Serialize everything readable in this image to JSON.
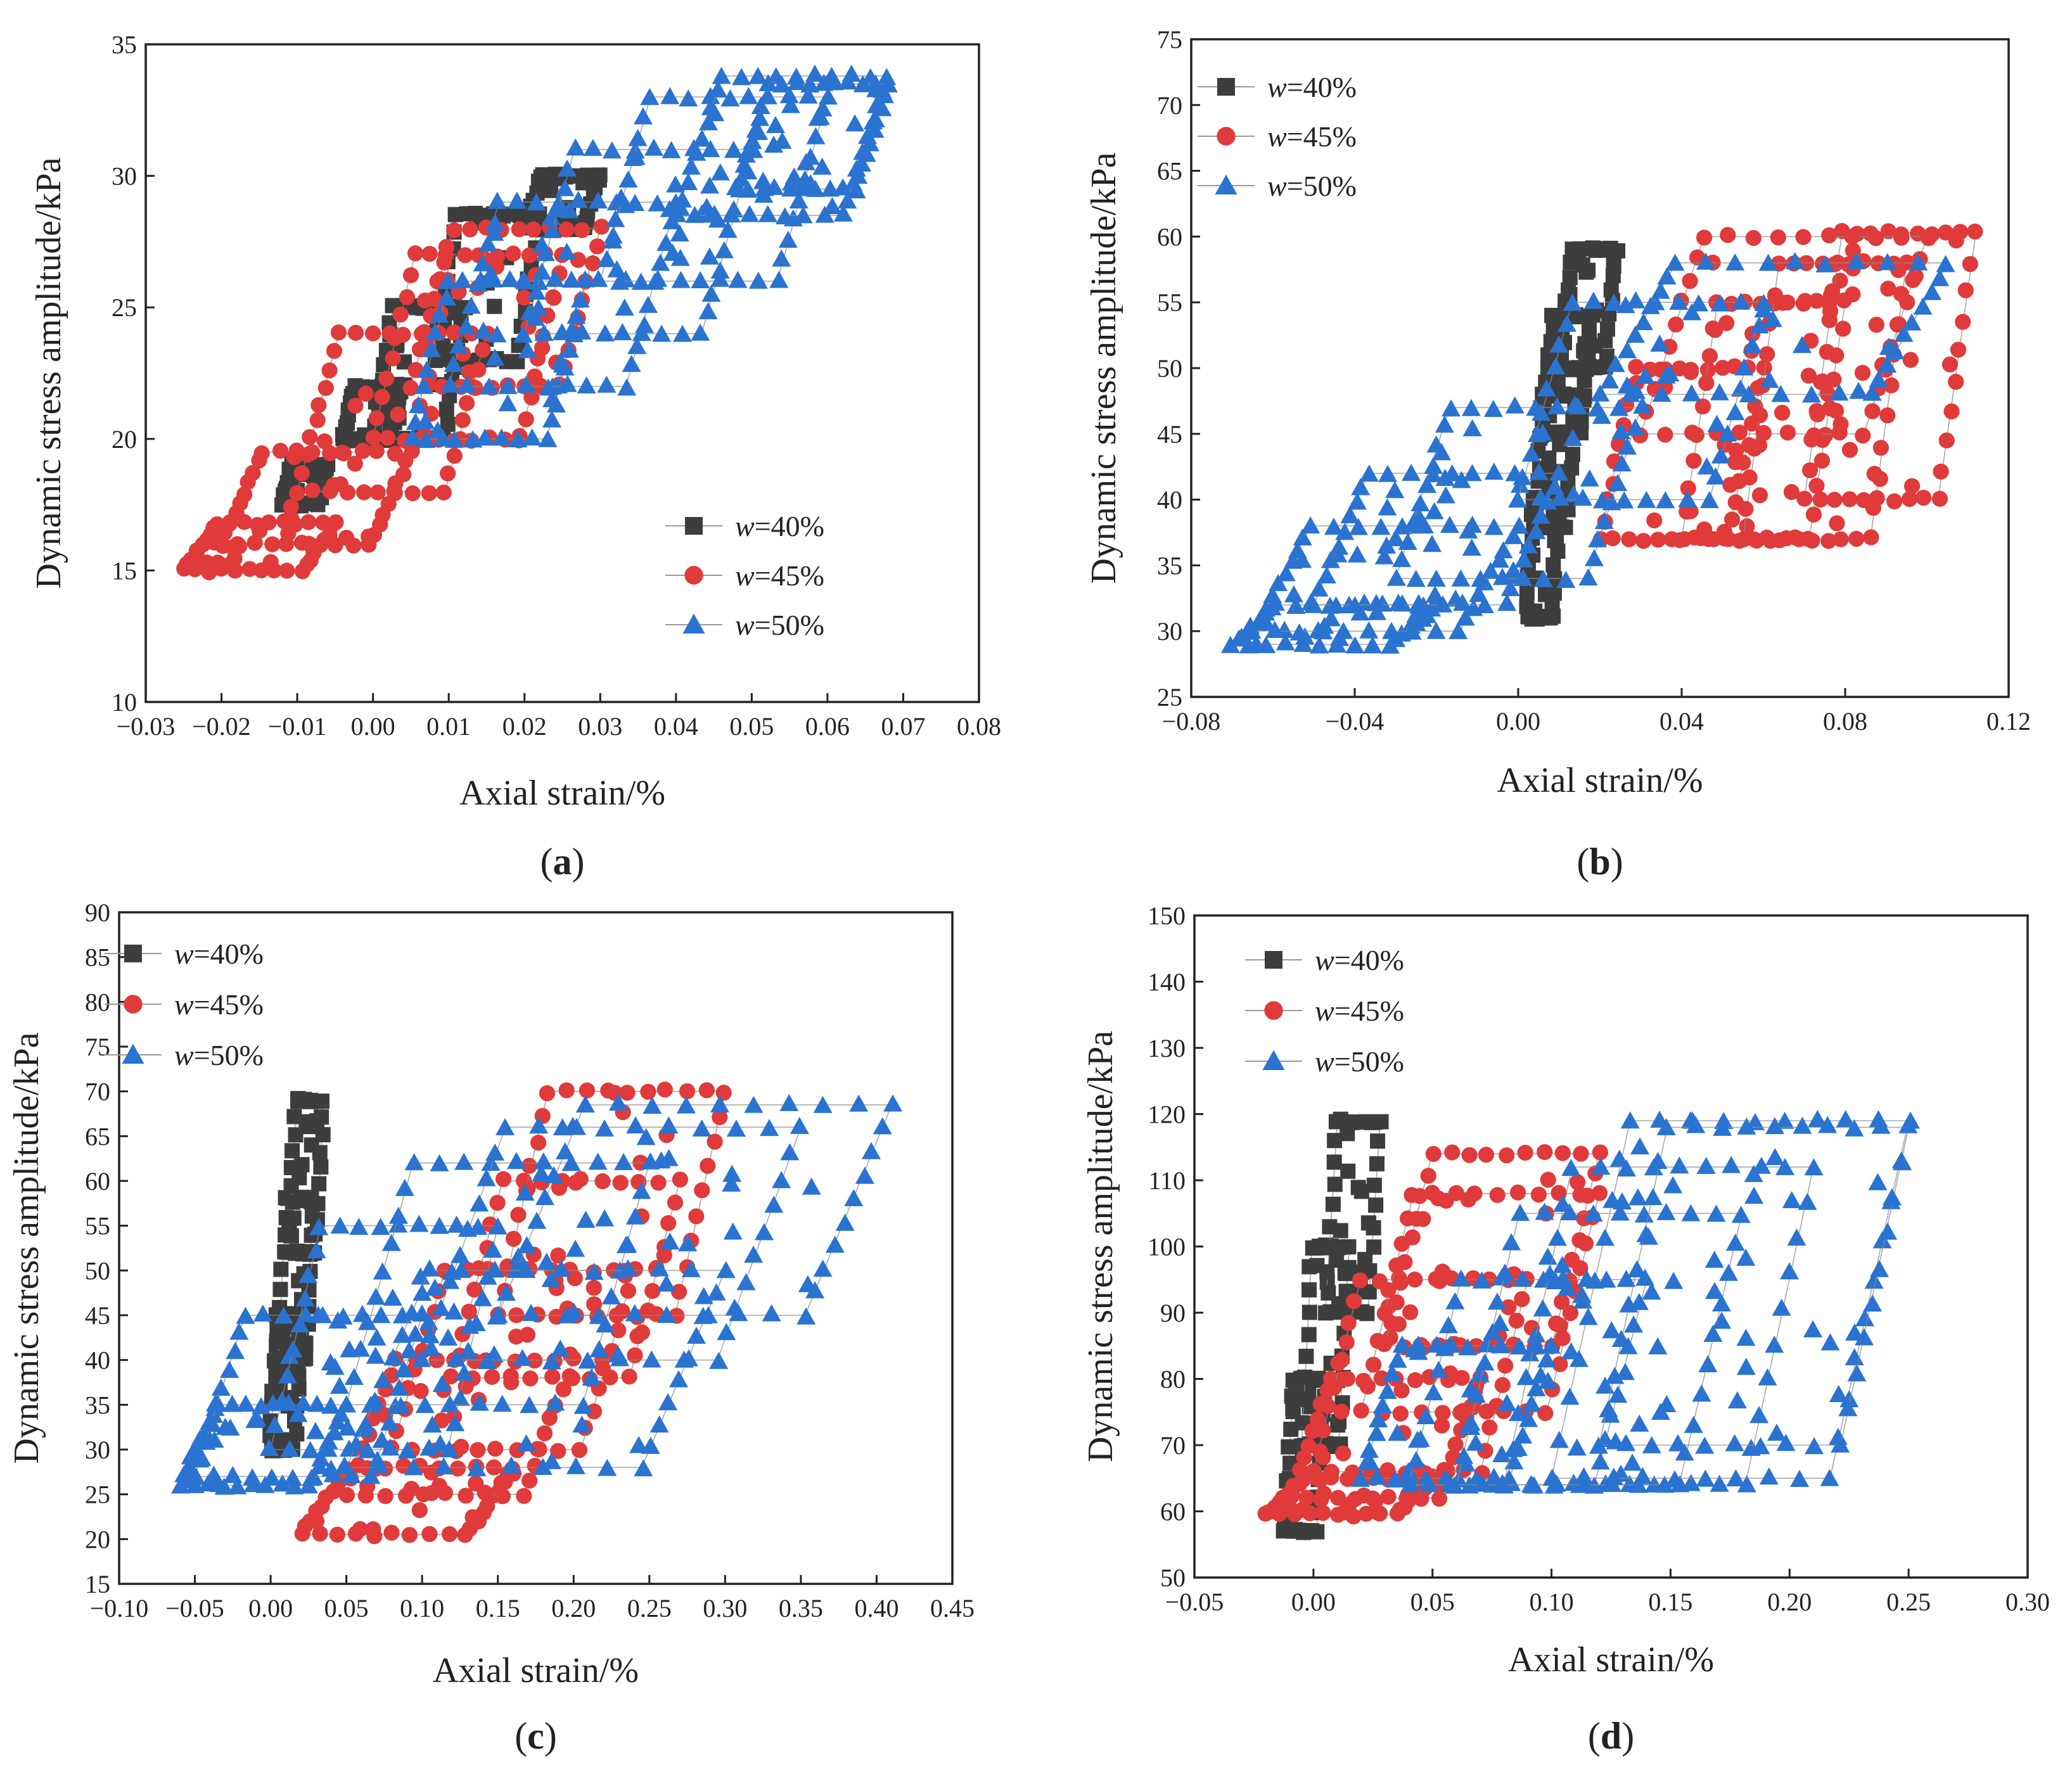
{
  "figure": {
    "series_colors": {
      "w40": "#3d3d3d",
      "w45": "#e03a3a",
      "w50": "#2a73d0"
    },
    "legend_items": [
      {
        "key": "w40",
        "prefix": "w",
        "suffix": "=40%",
        "marker": "square"
      },
      {
        "key": "w45",
        "prefix": "w",
        "suffix": "=45%",
        "marker": "circle"
      },
      {
        "key": "w50",
        "prefix": "w",
        "suffix": "=50%",
        "marker": "triangle"
      }
    ]
  },
  "chart_data": [
    {
      "id": "a",
      "type": "scatter",
      "panel_label": "(a)",
      "panel_letter": "a",
      "xlabel": "Axial strain/%",
      "ylabel": "Dynamic stress amplitude/kPa",
      "xlim": [
        -0.03,
        0.08
      ],
      "ylim": [
        10,
        35
      ],
      "xticks": [
        -0.03,
        -0.02,
        -0.01,
        0.0,
        0.01,
        0.02,
        0.03,
        0.04,
        0.05,
        0.06,
        0.07,
        0.08
      ],
      "xtick_labels": [
        "−0.03",
        "−0.02",
        "−0.01",
        "0.00",
        "0.01",
        "0.02",
        "0.03",
        "0.04",
        "0.05",
        "0.06",
        "0.07",
        "0.08"
      ],
      "yticks": [
        10,
        15,
        20,
        25,
        30,
        35
      ],
      "ytick_labels": [
        "10",
        "15",
        "20",
        "25",
        "30",
        "35"
      ],
      "legend_position": "bottom-right",
      "series": [
        {
          "name": "w=40%",
          "key": "w40",
          "marker": "square",
          "loops": [
            [
              -0.012,
              17.5,
              -0.006,
              19.0
            ],
            [
              -0.004,
              20.0,
              0.004,
              22.0
            ],
            [
              0.0,
              20.0,
              0.012,
              25.0
            ],
            [
              0.008,
              23.0,
              0.022,
              28.5
            ],
            [
              0.02,
              28.0,
              0.03,
              30.0
            ]
          ]
        },
        {
          "name": "w=45%",
          "key": "w45",
          "marker": "circle",
          "loops": [
            [
              -0.025,
              15.0,
              -0.005,
              16.8
            ],
            [
              -0.02,
              16.0,
              0.005,
              19.5
            ],
            [
              -0.01,
              18.0,
              0.015,
              24.0
            ],
            [
              0.0,
              20.0,
              0.025,
              27.0
            ],
            [
              0.005,
              22.0,
              0.03,
              28.0
            ]
          ]
        },
        {
          "name": "w=50%",
          "key": "w50",
          "marker": "triangle",
          "loops": [
            [
              0.005,
              20.0,
              0.028,
              26.0
            ],
            [
              0.01,
              22.0,
              0.04,
              29.0
            ],
            [
              0.02,
              24.0,
              0.05,
              31.0
            ],
            [
              0.03,
              26.0,
              0.06,
              33.0
            ],
            [
              0.04,
              28.5,
              0.068,
              33.8
            ],
            [
              0.048,
              29.5,
              0.068,
              33.5
            ]
          ]
        }
      ]
    },
    {
      "id": "b",
      "type": "scatter",
      "panel_label": "(b)",
      "panel_letter": "b",
      "xlabel": "Axial strain/%",
      "ylabel": "Dynamic stress amplitude/kPa",
      "xlim": [
        -0.08,
        0.12
      ],
      "ylim": [
        25,
        75
      ],
      "xticks": [
        -0.08,
        -0.04,
        0.0,
        0.04,
        0.08,
        0.12
      ],
      "xtick_labels": [
        "−0.08",
        "−0.04",
        "0.00",
        "0.04",
        "0.08",
        "0.12"
      ],
      "yticks": [
        25,
        30,
        35,
        40,
        45,
        50,
        55,
        60,
        65,
        70,
        75
      ],
      "ytick_labels": [
        "25",
        "30",
        "35",
        "40",
        "45",
        "50",
        "55",
        "60",
        "65",
        "70",
        "75"
      ],
      "legend_position": "top-left",
      "series": [
        {
          "name": "w=40%",
          "key": "w40",
          "marker": "square",
          "loops": [
            [
              0.002,
              31.0,
              0.01,
              40.0
            ],
            [
              0.004,
              38.0,
              0.014,
              48.0
            ],
            [
              0.006,
              45.0,
              0.018,
              54.0
            ],
            [
              0.01,
              50.0,
              0.024,
              59.0
            ]
          ]
        },
        {
          "name": "w=45%",
          "key": "w45",
          "marker": "circle",
          "loops": [
            [
              0.02,
              37.0,
              0.06,
              50.0
            ],
            [
              0.04,
              37.0,
              0.08,
              55.0
            ],
            [
              0.055,
              37.0,
              0.095,
              58.0
            ],
            [
              0.07,
              40.0,
              0.112,
              60.3
            ],
            [
              0.03,
              45.0,
              0.1,
              60.0
            ]
          ]
        },
        {
          "name": "w=50%",
          "key": "w50",
          "marker": "triangle",
          "loops": [
            [
              -0.07,
              29.0,
              -0.02,
              32.0
            ],
            [
              -0.065,
              30.0,
              0.0,
              38.0
            ],
            [
              -0.05,
              32.0,
              0.01,
              42.0
            ],
            [
              -0.03,
              34.0,
              0.03,
              47.0
            ],
            [
              0.0,
              40.0,
              0.06,
              55.0
            ],
            [
              0.02,
              48.0,
              0.105,
              58.0
            ]
          ]
        }
      ]
    },
    {
      "id": "c",
      "type": "scatter",
      "panel_label": "(c)",
      "panel_letter": "c",
      "xlabel": "Axial strain/%",
      "ylabel": "Dynamic stress amplitude/kPa",
      "xlim": [
        -0.1,
        0.45
      ],
      "ylim": [
        15,
        90
      ],
      "xticks": [
        -0.1,
        -0.05,
        0.0,
        0.05,
        0.1,
        0.15,
        0.2,
        0.25,
        0.3,
        0.35,
        0.4,
        0.45
      ],
      "xtick_labels": [
        "−0.10",
        "−0.05",
        "0.00",
        "0.05",
        "0.10",
        "0.15",
        "0.20",
        "0.25",
        "0.30",
        "0.35",
        "0.40",
        "0.45"
      ],
      "yticks": [
        15,
        20,
        25,
        30,
        35,
        40,
        45,
        50,
        55,
        60,
        65,
        70,
        75,
        80,
        85,
        90
      ],
      "ytick_labels": [
        "15",
        "20",
        "25",
        "30",
        "35",
        "40",
        "45",
        "50",
        "55",
        "60",
        "65",
        "70",
        "75",
        "80",
        "85",
        "90"
      ],
      "legend_position": "top-left",
      "series": [
        {
          "name": "w=40%",
          "key": "w40",
          "marker": "square",
          "loops": [
            [
              0.0,
              30.0,
              0.02,
              45.0
            ],
            [
              0.005,
              40.0,
              0.028,
              58.0
            ],
            [
              0.012,
              52.0,
              0.035,
              69.0
            ]
          ]
        },
        {
          "name": "w=45%",
          "key": "w45",
          "marker": "circle",
          "loops": [
            [
              0.02,
              20.5,
              0.16,
              28.0
            ],
            [
              0.05,
              25.0,
              0.2,
              40.0
            ],
            [
              0.08,
              30.0,
              0.24,
              50.0
            ],
            [
              0.12,
              38.0,
              0.27,
              60.0
            ],
            [
              0.15,
              45.0,
              0.3,
              70.0
            ]
          ]
        },
        {
          "name": "w=50%",
          "key": "w50",
          "marker": "triangle",
          "loops": [
            [
              -0.06,
              26.0,
              0.05,
              35.0
            ],
            [
              -0.05,
              27.0,
              0.1,
              45.0
            ],
            [
              0.0,
              30.0,
              0.15,
              55.0
            ],
            [
              0.05,
              35.0,
              0.25,
              62.0
            ],
            [
              0.1,
              40.0,
              0.35,
              66.0
            ],
            [
              0.15,
              45.0,
              0.41,
              68.5
            ],
            [
              0.05,
              28.0,
              0.3,
              50.0
            ]
          ]
        }
      ]
    },
    {
      "id": "d",
      "type": "scatter",
      "panel_label": "(d)",
      "panel_letter": "d",
      "xlabel": "Axial strain/%",
      "ylabel": "Dynamic stress amplitude/kPa",
      "xlim": [
        -0.05,
        0.3
      ],
      "ylim": [
        50,
        150
      ],
      "xticks": [
        -0.05,
        0.0,
        0.05,
        0.1,
        0.15,
        0.2,
        0.25,
        0.3
      ],
      "xtick_labels": [
        "−0.05",
        "0.00",
        "0.05",
        "0.10",
        "0.15",
        "0.20",
        "0.25",
        "0.30"
      ],
      "yticks": [
        50,
        60,
        70,
        80,
        90,
        100,
        110,
        120,
        130,
        140,
        150
      ],
      "ytick_labels": [
        "50",
        "60",
        "70",
        "80",
        "90",
        "100",
        "110",
        "120",
        "130",
        "140",
        "150"
      ],
      "legend_position": "top-left",
      "series": [
        {
          "name": "w=40%",
          "key": "w40",
          "marker": "square",
          "loops": [
            [
              -0.012,
              57.0,
              0.005,
              80.0
            ],
            [
              -0.005,
              70.0,
              0.015,
              100.0
            ],
            [
              0.005,
              90.0,
              0.028,
              119.0
            ]
          ]
        },
        {
          "name": "w=45%",
          "key": "w45",
          "marker": "circle",
          "loops": [
            [
              -0.02,
              59.5,
              0.05,
              65.0
            ],
            [
              -0.01,
              62.0,
              0.07,
              80.0
            ],
            [
              0.0,
              66.0,
              0.09,
              95.0
            ],
            [
              0.02,
              75.0,
              0.12,
              108.0
            ],
            [
              0.03,
              85.0,
              0.12,
              114.0
            ]
          ]
        },
        {
          "name": "w=50%",
          "key": "w50",
          "marker": "triangle",
          "loops": [
            [
              0.02,
              65.0,
              0.1,
              85.0
            ],
            [
              0.04,
              64.0,
              0.14,
              95.0
            ],
            [
              0.06,
              64.0,
              0.18,
              105.0
            ],
            [
              0.08,
              64.0,
              0.21,
              112.0
            ],
            [
              0.1,
              65.0,
              0.25,
              119.0
            ],
            [
              0.12,
              70.0,
              0.25,
              118.0
            ]
          ]
        }
      ]
    }
  ]
}
